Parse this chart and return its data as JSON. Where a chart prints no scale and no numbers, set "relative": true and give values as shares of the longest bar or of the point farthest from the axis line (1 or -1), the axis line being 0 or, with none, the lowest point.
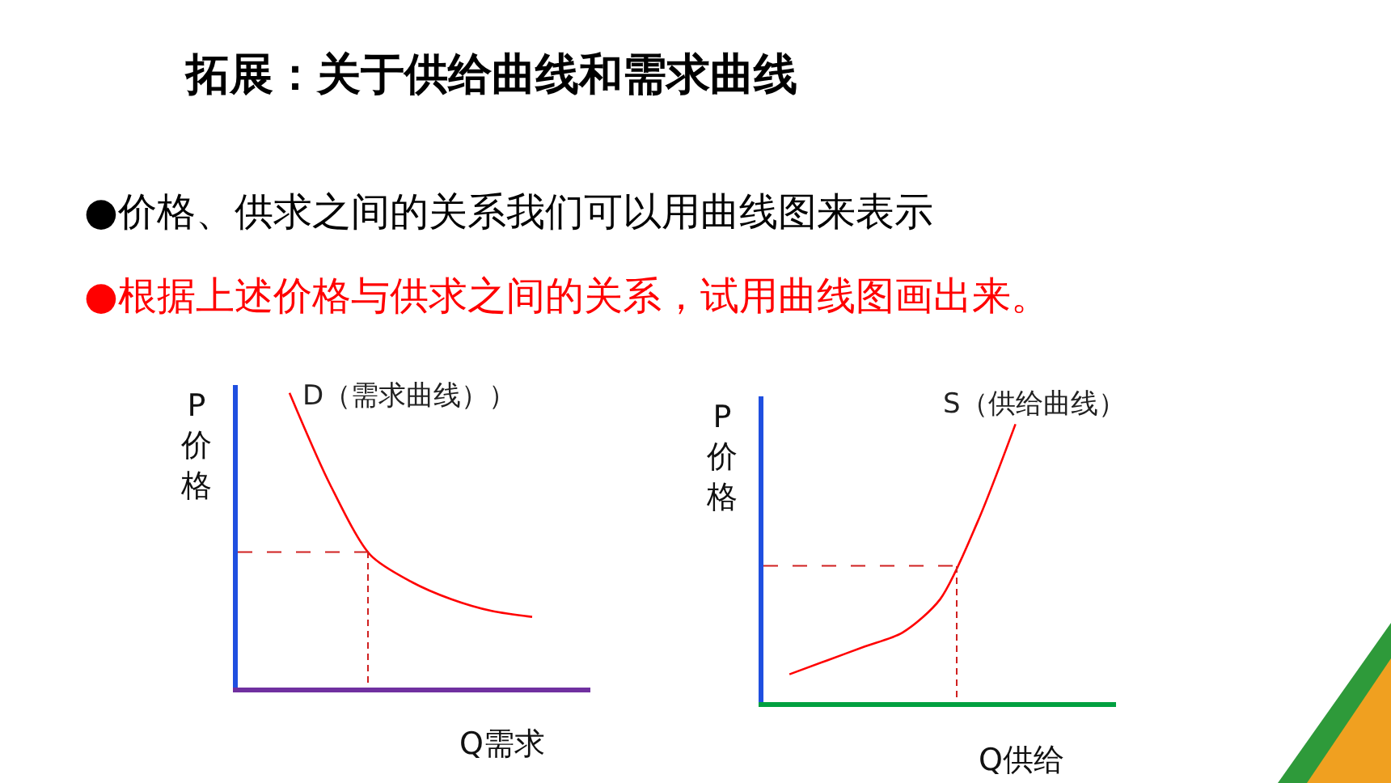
{
  "chart_data": [
    {
      "type": "other",
      "title": "拓展：关于供给曲线和需求曲线",
      "annotations": [
        "●价格、供求之间的关系我们可以用曲线图来表示",
        "●根据上述价格与供求之间的关系，试用曲线图画出来。"
      ]
    },
    {
      "type": "line",
      "relative": true,
      "xlabel": "Q需求",
      "ylabel": "P价格",
      "categories": [
        null,
        null,
        null,
        null,
        null,
        null,
        null
      ],
      "marker": "none",
      "series": [
        {
          "name": "D（需求曲线））",
          "color": "#ff0000",
          "values": [
            1,
            0.69,
            0.45,
            0.36,
            0.3,
            0.26,
            0.24
          ]
        }
      ],
      "ref_lines": [
        {
          "axis": "y",
          "value": 0.46,
          "color": "#d02020",
          "line_style": "dashed"
        }
      ]
    },
    {
      "type": "line",
      "relative": true,
      "xlabel": "Q供给",
      "ylabel": "P价格",
      "categories": [
        null,
        null,
        null,
        null,
        null,
        null,
        null
      ],
      "marker": "none",
      "series": [
        {
          "name": "S（供给曲线）",
          "color": "#ff0000",
          "values": [
            0.1,
            0.15,
            0.2,
            0.25,
            0.37,
            0.65,
            1
          ]
        }
      ],
      "ref_lines": [
        {
          "axis": "y",
          "value": 0.49,
          "color": "#d02020",
          "line_style": "dashed"
        }
      ]
    }
  ]
}
